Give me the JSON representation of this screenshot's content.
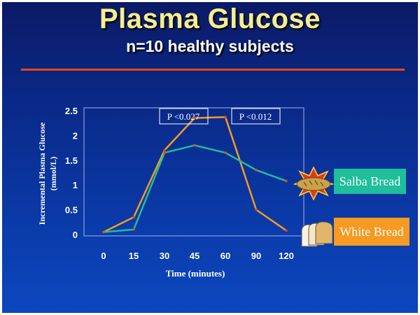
{
  "slide": {
    "title": "Plasma Glucose",
    "subtitle": "n=10 healthy subjects",
    "accent_color": "#e8461a"
  },
  "chart_data": {
    "type": "line",
    "title": "",
    "xlabel": "Time (minutes)",
    "ylabel_line1": "Incremental Plasma Glucose",
    "ylabel_line2": "(mmol/L)",
    "categories": [
      "0",
      "15",
      "30",
      "45",
      "60",
      "90",
      "120"
    ],
    "yticks": [
      "0",
      "0.5",
      "1",
      "1.5",
      "2",
      "2.5"
    ],
    "ylim": [
      0,
      2.5
    ],
    "series": [
      {
        "name": "Salba Bread",
        "color": "#1ebf9a",
        "values": [
          0.05,
          0.1,
          1.65,
          1.8,
          1.65,
          1.3,
          1.08
        ]
      },
      {
        "name": "White Bread",
        "color": "#f59a22",
        "values": [
          0.05,
          0.35,
          1.7,
          2.35,
          2.37,
          0.5,
          0.08
        ]
      }
    ],
    "annotations": [
      "P <0.027",
      "P <0.012"
    ]
  }
}
